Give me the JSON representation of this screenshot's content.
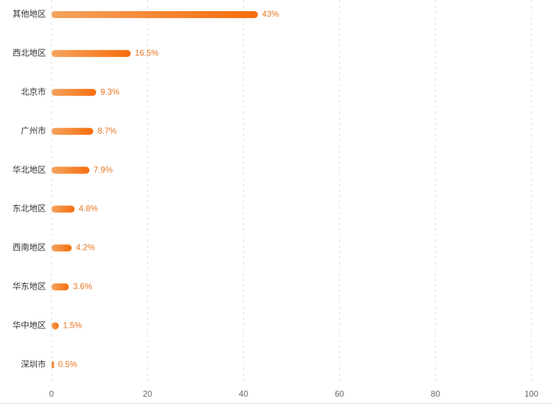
{
  "chart_data": {
    "type": "hbar",
    "categories": [
      "其他地区",
      "西北地区",
      "北京市",
      "广州市",
      "华北地区",
      "东北地区",
      "西南地区",
      "华东地区",
      "华中地区",
      "深圳市"
    ],
    "values": [
      43,
      16.5,
      9.3,
      8.7,
      7.9,
      4.8,
      4.2,
      3.6,
      1.5,
      0.5
    ],
    "value_labels": [
      "43%",
      "16.5%",
      "9.3%",
      "8.7%",
      "7.9%",
      "4.8%",
      "4.2%",
      "3.6%",
      "1.5%",
      "0.5%"
    ],
    "color": [
      "#f5a35e",
      "#f76d0c"
    ],
    "xlim": [
      0,
      100
    ],
    "xticks": [
      0,
      20,
      40,
      60,
      80,
      100
    ],
    "grid": true
  }
}
